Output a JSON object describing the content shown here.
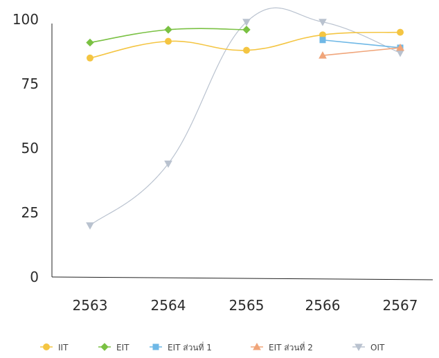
{
  "chart_data": {
    "type": "line",
    "categories": [
      "2563",
      "2564",
      "2565",
      "2566",
      "2567"
    ],
    "ylim": [
      0,
      100
    ],
    "yticks": [
      "0",
      "25",
      "50",
      "75",
      "100"
    ],
    "grid": false,
    "legend_position": "bottom",
    "series": [
      {
        "name": "IIT",
        "color": "#f4c542",
        "marker": "circle",
        "values": [
          85,
          91.5,
          88,
          94,
          95
        ]
      },
      {
        "name": "EIT",
        "color": "#7ac143",
        "marker": "diamond",
        "values": [
          91,
          96,
          96,
          null,
          null
        ]
      },
      {
        "name": "EIT ส่วนที่ 1",
        "color": "#6fb8e6",
        "marker": "square",
        "values": [
          null,
          null,
          null,
          92,
          89
        ]
      },
      {
        "name": "EIT ส่วนที่ 2",
        "color": "#f0a57a",
        "marker": "triangle",
        "values": [
          null,
          null,
          null,
          86,
          89
        ]
      },
      {
        "name": "OIT",
        "color": "#b9c2cf",
        "marker": "triangle-down",
        "values": [
          20,
          44,
          99,
          99,
          87
        ]
      }
    ]
  }
}
